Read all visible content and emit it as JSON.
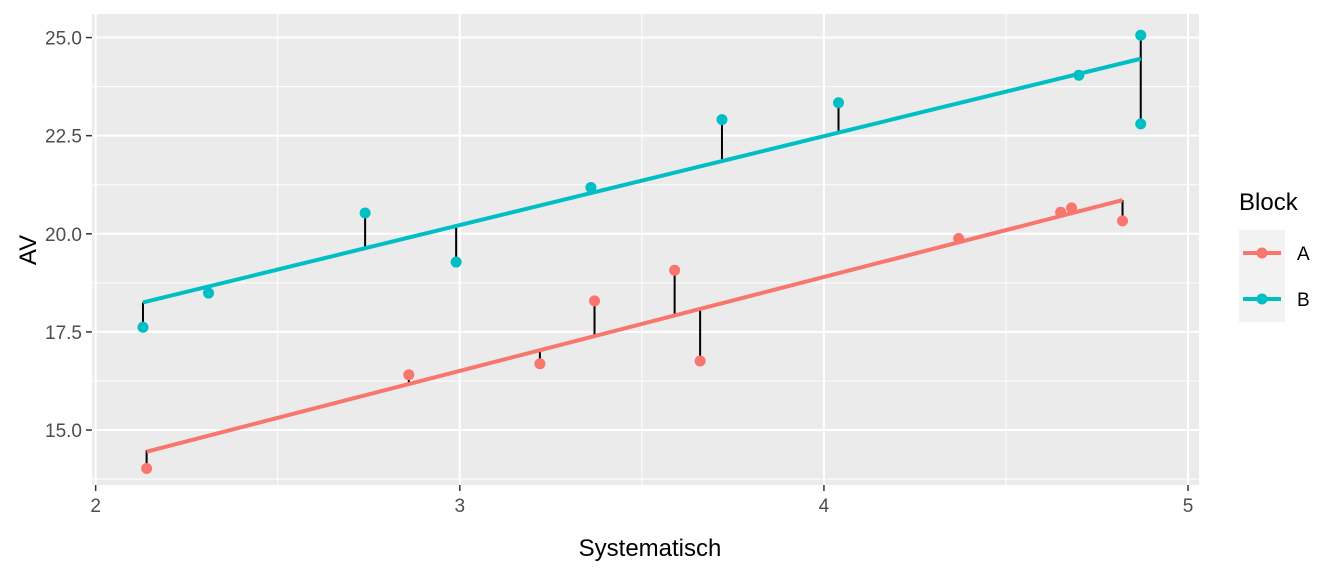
{
  "chart_data": {
    "type": "scatter",
    "xlabel": "Systematisch",
    "ylabel": "AV",
    "xlim": [
      1.99,
      5.03
    ],
    "ylim": [
      13.6,
      25.6
    ],
    "x_ticks": [
      2,
      3,
      4,
      5
    ],
    "x_tick_labels": [
      "2",
      "3",
      "4",
      "5"
    ],
    "y_ticks": [
      15.0,
      17.5,
      20.0,
      22.5,
      25.0
    ],
    "y_tick_labels": [
      "15.0",
      "17.5",
      "20.0",
      "22.5",
      "25.0"
    ],
    "grid": true,
    "legend": {
      "title": "Block",
      "position": "right"
    },
    "series": [
      {
        "name": "A",
        "color": "#F8766D",
        "line": {
          "x": [
            2.14,
            4.82
          ],
          "y": [
            14.45,
            20.86
          ]
        },
        "points": [
          {
            "x": 2.14,
            "y": 14.02,
            "fitted": 14.49
          },
          {
            "x": 2.86,
            "y": 16.41,
            "fitted": 16.21
          },
          {
            "x": 3.22,
            "y": 16.69,
            "fitted": 17.07
          },
          {
            "x": 3.37,
            "y": 18.29,
            "fitted": 17.43
          },
          {
            "x": 3.59,
            "y": 19.07,
            "fitted": 17.96
          },
          {
            "x": 3.66,
            "y": 16.76,
            "fitted": 18.12
          },
          {
            "x": 4.37,
            "y": 19.88,
            "fitted": 19.82
          },
          {
            "x": 4.65,
            "y": 20.55,
            "fitted": 20.49
          },
          {
            "x": 4.68,
            "y": 20.66,
            "fitted": 20.56
          },
          {
            "x": 4.82,
            "y": 20.33,
            "fitted": 20.86
          }
        ]
      },
      {
        "name": "B",
        "color": "#00BFC4",
        "line": {
          "x": [
            2.13,
            4.87
          ],
          "y": [
            18.25,
            24.46
          ]
        },
        "points": [
          {
            "x": 2.13,
            "y": 17.62,
            "fitted": 18.25
          },
          {
            "x": 2.31,
            "y": 18.49,
            "fitted": 18.64
          },
          {
            "x": 2.74,
            "y": 20.53,
            "fitted": 19.62
          },
          {
            "x": 2.99,
            "y": 19.28,
            "fitted": 20.18
          },
          {
            "x": 3.36,
            "y": 21.18,
            "fitted": 21.02
          },
          {
            "x": 3.72,
            "y": 22.91,
            "fitted": 21.84
          },
          {
            "x": 4.04,
            "y": 23.34,
            "fitted": 22.56
          },
          {
            "x": 4.7,
            "y": 24.04,
            "fitted": 24.06
          },
          {
            "x": 4.87,
            "y": 22.8,
            "fitted": 24.46
          },
          {
            "x": 4.87,
            "y": 25.06,
            "fitted": 24.46
          }
        ]
      }
    ]
  }
}
